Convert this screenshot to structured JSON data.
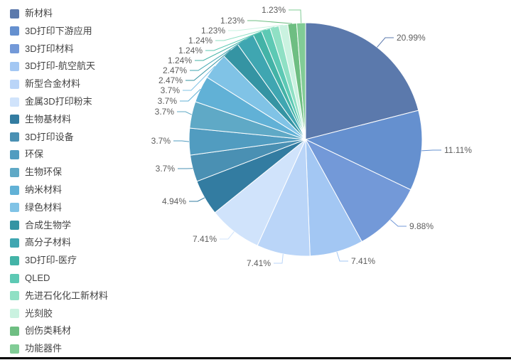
{
  "chart_data": {
    "type": "pie",
    "title": "",
    "legend_position": "left",
    "label_style": "outside-percent-with-leader-lines",
    "total_percent": 100,
    "categories": [
      "新材料",
      "3D打印下游应用",
      "3D打印材料",
      "3D打印-航空航天",
      "新型合金材料",
      "金属3D打印粉末",
      "生物基材料",
      "3D打印设备",
      "环保",
      "生物环保",
      "纳米材料",
      "绿色材料",
      "合成生物学",
      "高分子材料",
      "3D打印-医疗",
      "QLED",
      "先进石化化工新材料",
      "光刻胶",
      "创伤类耗材",
      "功能器件"
    ],
    "series": [
      {
        "name": "新材料",
        "value": 20.99,
        "label": "20.99%",
        "color": "#5b79ac"
      },
      {
        "name": "3D打印下游应用",
        "value": 11.11,
        "label": "11.11%",
        "color": "#6590cf"
      },
      {
        "name": "3D打印材料",
        "value": 9.88,
        "label": "9.88%",
        "color": "#7399d8"
      },
      {
        "name": "3D打印-航空航天",
        "value": 7.41,
        "label": "7.41%",
        "color": "#a3c7f3"
      },
      {
        "name": "新型合金材料",
        "value": 7.41,
        "label": "7.41%",
        "color": "#bad5f8"
      },
      {
        "name": "金属3D打印粉末",
        "value": 7.41,
        "label": "7.41%",
        "color": "#d0e3fb"
      },
      {
        "name": "生物基材料",
        "value": 4.94,
        "label": "4.94%",
        "color": "#337ca1"
      },
      {
        "name": "3D打印设备",
        "value": 3.7,
        "label": "3.7%",
        "color": "#4a90b3"
      },
      {
        "name": "环保",
        "value": 3.7,
        "label": "3.7%",
        "color": "#519cc0"
      },
      {
        "name": "生物环保",
        "value": 3.7,
        "label": "3.7%",
        "color": "#5fa9c6"
      },
      {
        "name": "纳米材料",
        "value": 3.7,
        "label": "3.7%",
        "color": "#61b1d6"
      },
      {
        "name": "绿色材料",
        "value": 3.7,
        "label": "3.7%",
        "color": "#80c3e6"
      },
      {
        "name": "合成生物学",
        "value": 2.47,
        "label": "2.47%",
        "color": "#3594a3"
      },
      {
        "name": "高分子材料",
        "value": 2.47,
        "label": "2.47%",
        "color": "#3fa6b1"
      },
      {
        "name": "3D打印-医疗",
        "value": 1.24,
        "label": "1.24%",
        "color": "#43b3a7"
      },
      {
        "name": "QLED",
        "value": 1.24,
        "label": "1.24%",
        "color": "#5dc9b4"
      },
      {
        "name": "先进石化化工新材料",
        "value": 1.24,
        "label": "1.24%",
        "color": "#8fe0c4"
      },
      {
        "name": "光刻胶",
        "value": 1.23,
        "label": "1.23%",
        "color": "#caf2e0"
      },
      {
        "name": "创伤类耗材",
        "value": 1.23,
        "label": "1.23%",
        "color": "#6ebe82"
      },
      {
        "name": "功能器件",
        "value": 1.23,
        "label": "1.23%",
        "color": "#81cc96"
      }
    ],
    "colors": {
      "background": "#ffffff",
      "label_text": "#5d5d5d",
      "legend_text": "#434343",
      "slice_border": "#ffffff",
      "bottom_rule": "#000000"
    }
  }
}
